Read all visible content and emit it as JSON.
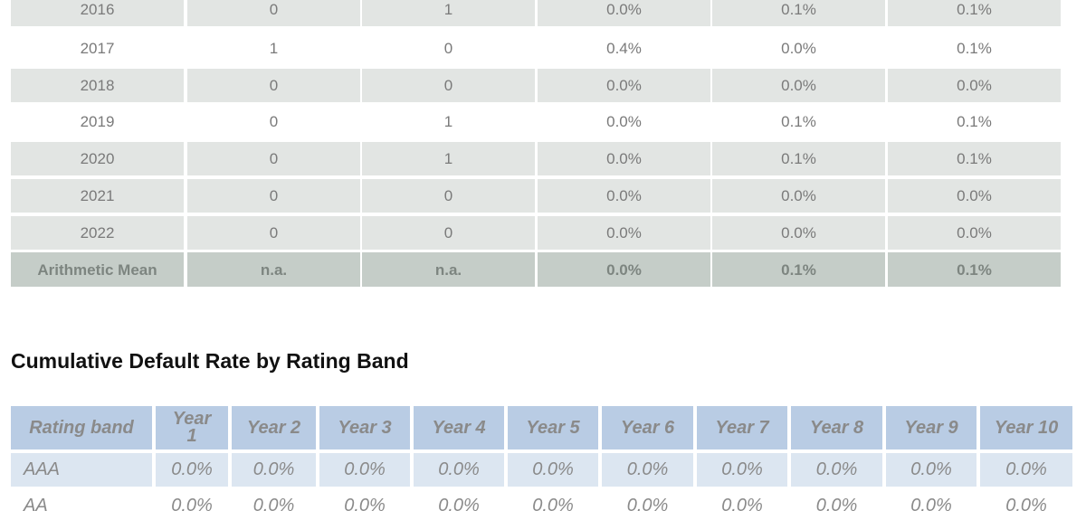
{
  "table_top": {
    "rows": [
      [
        "2016",
        "0",
        "1",
        "0.0%",
        "0.1%",
        "0.1%"
      ],
      [
        "2017",
        "1",
        "0",
        "0.4%",
        "0.0%",
        "0.1%"
      ],
      [
        "2018",
        "0",
        "0",
        "0.0%",
        "0.0%",
        "0.0%"
      ],
      [
        "2019",
        "0",
        "1",
        "0.0%",
        "0.1%",
        "0.1%"
      ],
      [
        "2020",
        "0",
        "1",
        "0.0%",
        "0.1%",
        "0.1%"
      ],
      [
        "2021",
        "0",
        "0",
        "0.0%",
        "0.0%",
        "0.0%"
      ],
      [
        "2022",
        "0",
        "0",
        "0.0%",
        "0.0%",
        "0.0%"
      ]
    ],
    "footer": [
      "Arithmetic Mean",
      "n.a.",
      "n.a.",
      "0.0%",
      "0.1%",
      "0.1%"
    ]
  },
  "heading": "Cumulative Default Rate by Rating Band",
  "table_bottom": {
    "header": [
      "Rating band",
      "Year 1",
      "Year 2",
      "Year 3",
      "Year 4",
      "Year 5",
      "Year 6",
      "Year 7",
      "Year 8",
      "Year 9",
      "Year 10"
    ],
    "rows": [
      [
        "AAA",
        "0.0%",
        "0.0%",
        "0.0%",
        "0.0%",
        "0.0%",
        "0.0%",
        "0.0%",
        "0.0%",
        "0.0%",
        "0.0%"
      ],
      [
        "AA",
        "0.0%",
        "0.0%",
        "0.0%",
        "0.0%",
        "0.0%",
        "0.0%",
        "0.0%",
        "0.0%",
        "0.0%",
        "0.0%"
      ]
    ]
  }
}
